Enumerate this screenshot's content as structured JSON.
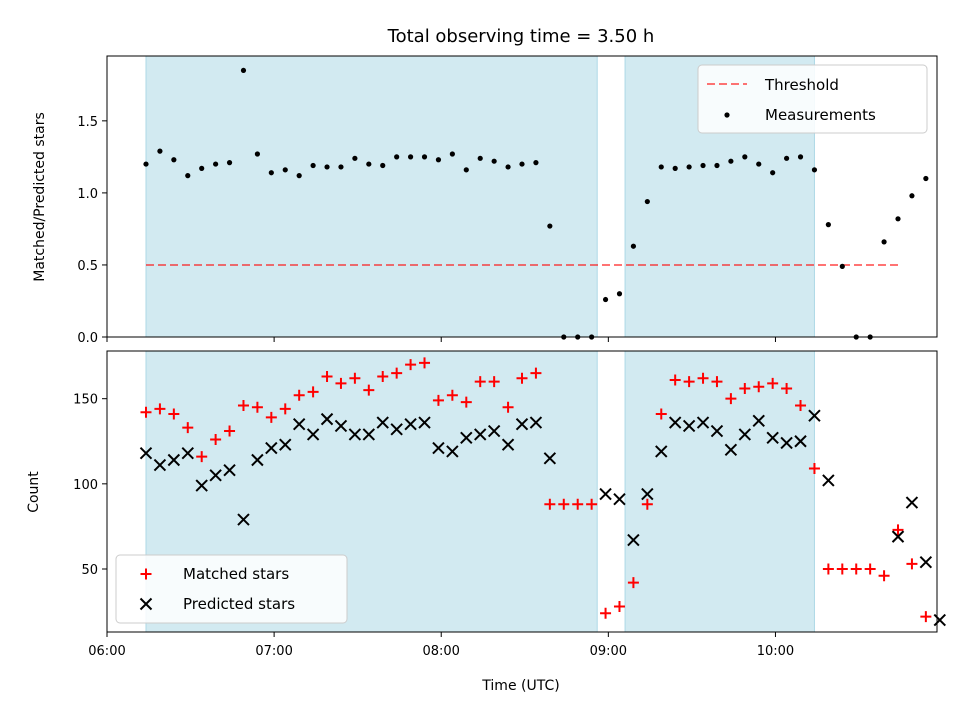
{
  "colors": {
    "shade": "#add8e6",
    "threshold": "#ff0000",
    "matched": "#ff0000",
    "predicted": "#000000",
    "measurements": "#000000"
  },
  "chart_data": [
    {
      "type": "scatter",
      "title": "Total observing time = 3.50 h",
      "ylabel": "Matched/Predicted stars",
      "xlabel": "",
      "x_axis": "time",
      "xlim": [
        "06:00",
        "10:58"
      ],
      "ylim": [
        0,
        1.95
      ],
      "y_ticks": [
        "0.0",
        "0.5",
        "1.0",
        "1.5"
      ],
      "legend_position": "upper right",
      "shaded_intervals": [
        [
          "06:14",
          "08:56"
        ],
        [
          "09:06",
          "10:14"
        ]
      ],
      "threshold": {
        "name": "Threshold",
        "value": 0.5,
        "x_range": [
          "06:14",
          "10:45"
        ],
        "style": "dashed"
      },
      "series": [
        {
          "name": "Measurements",
          "marker": "dot",
          "points": [
            [
              "06:14",
              1.2
            ],
            [
              "06:19",
              1.29
            ],
            [
              "06:24",
              1.23
            ],
            [
              "06:29",
              1.12
            ],
            [
              "06:34",
              1.17
            ],
            [
              "06:39",
              1.2
            ],
            [
              "06:44",
              1.21
            ],
            [
              "06:49",
              1.85
            ],
            [
              "06:54",
              1.27
            ],
            [
              "06:59",
              1.14
            ],
            [
              "07:04",
              1.16
            ],
            [
              "07:09",
              1.12
            ],
            [
              "07:14",
              1.19
            ],
            [
              "07:19",
              1.18
            ],
            [
              "07:24",
              1.18
            ],
            [
              "07:29",
              1.24
            ],
            [
              "07:34",
              1.2
            ],
            [
              "07:39",
              1.19
            ],
            [
              "07:44",
              1.25
            ],
            [
              "07:49",
              1.25
            ],
            [
              "07:54",
              1.25
            ],
            [
              "07:59",
              1.23
            ],
            [
              "08:04",
              1.27
            ],
            [
              "08:09",
              1.16
            ],
            [
              "08:14",
              1.24
            ],
            [
              "08:19",
              1.22
            ],
            [
              "08:24",
              1.18
            ],
            [
              "08:29",
              1.2
            ],
            [
              "08:34",
              1.21
            ],
            [
              "08:39",
              0.77
            ],
            [
              "08:44",
              0.0
            ],
            [
              "08:49",
              0.0
            ],
            [
              "08:54",
              0.0
            ],
            [
              "08:59",
              0.26
            ],
            [
              "09:04",
              0.3
            ],
            [
              "09:09",
              0.63
            ],
            [
              "09:14",
              0.94
            ],
            [
              "09:19",
              1.18
            ],
            [
              "09:24",
              1.17
            ],
            [
              "09:29",
              1.18
            ],
            [
              "09:34",
              1.19
            ],
            [
              "09:39",
              1.19
            ],
            [
              "09:44",
              1.22
            ],
            [
              "09:49",
              1.25
            ],
            [
              "09:54",
              1.2
            ],
            [
              "09:59",
              1.14
            ],
            [
              "10:04",
              1.24
            ],
            [
              "10:09",
              1.25
            ],
            [
              "10:14",
              1.16
            ],
            [
              "10:19",
              0.78
            ],
            [
              "10:24",
              0.49
            ],
            [
              "10:29",
              0.0
            ],
            [
              "10:34",
              0.0
            ],
            [
              "10:39",
              0.66
            ],
            [
              "10:44",
              0.82
            ],
            [
              "10:49",
              0.98
            ],
            [
              "10:54",
              1.1
            ]
          ]
        }
      ]
    },
    {
      "type": "scatter",
      "title": "",
      "ylabel": "Count",
      "xlabel": "Time (UTC)",
      "x_axis": "time",
      "xlim": [
        "06:00",
        "10:58"
      ],
      "ylim": [
        13,
        178
      ],
      "y_ticks": [
        "50",
        "100",
        "150"
      ],
      "x_ticks": [
        "06:00",
        "07:00",
        "08:00",
        "09:00",
        "10:00"
      ],
      "legend_position": "lower left",
      "shaded_intervals": [
        [
          "06:14",
          "08:56"
        ],
        [
          "09:06",
          "10:14"
        ]
      ],
      "series": [
        {
          "name": "Matched stars",
          "marker": "plus",
          "points": [
            [
              "06:14",
              142
            ],
            [
              "06:19",
              144
            ],
            [
              "06:24",
              141
            ],
            [
              "06:29",
              133
            ],
            [
              "06:34",
              116
            ],
            [
              "06:39",
              126
            ],
            [
              "06:44",
              131
            ],
            [
              "06:49",
              146
            ],
            [
              "06:54",
              145
            ],
            [
              "06:59",
              139
            ],
            [
              "07:04",
              144
            ],
            [
              "07:09",
              152
            ],
            [
              "07:14",
              154
            ],
            [
              "07:19",
              163
            ],
            [
              "07:24",
              159
            ],
            [
              "07:29",
              162
            ],
            [
              "07:34",
              155
            ],
            [
              "07:39",
              163
            ],
            [
              "07:44",
              165
            ],
            [
              "07:49",
              170
            ],
            [
              "07:54",
              171
            ],
            [
              "07:59",
              149
            ],
            [
              "08:04",
              152
            ],
            [
              "08:09",
              148
            ],
            [
              "08:14",
              160
            ],
            [
              "08:19",
              160
            ],
            [
              "08:24",
              145
            ],
            [
              "08:29",
              162
            ],
            [
              "08:34",
              165
            ],
            [
              "08:39",
              88
            ],
            [
              "08:44",
              88
            ],
            [
              "08:49",
              88
            ],
            [
              "08:54",
              88
            ],
            [
              "08:59",
              24
            ],
            [
              "09:04",
              28
            ],
            [
              "09:09",
              42
            ],
            [
              "09:14",
              88
            ],
            [
              "09:19",
              141
            ],
            [
              "09:24",
              161
            ],
            [
              "09:29",
              160
            ],
            [
              "09:34",
              162
            ],
            [
              "09:39",
              160
            ],
            [
              "09:44",
              150
            ],
            [
              "09:49",
              156
            ],
            [
              "09:54",
              157
            ],
            [
              "09:59",
              159
            ],
            [
              "10:04",
              156
            ],
            [
              "10:09",
              146
            ],
            [
              "10:14",
              109
            ],
            [
              "10:19",
              50
            ],
            [
              "10:24",
              50
            ],
            [
              "10:29",
              50
            ],
            [
              "10:34",
              50
            ],
            [
              "10:39",
              46
            ],
            [
              "10:44",
              73
            ],
            [
              "10:49",
              53
            ],
            [
              "10:54",
              22
            ]
          ]
        },
        {
          "name": "Predicted stars",
          "marker": "x",
          "points": [
            [
              "06:14",
              118
            ],
            [
              "06:19",
              111
            ],
            [
              "06:24",
              114
            ],
            [
              "06:29",
              118
            ],
            [
              "06:34",
              99
            ],
            [
              "06:39",
              105
            ],
            [
              "06:44",
              108
            ],
            [
              "06:49",
              79
            ],
            [
              "06:54",
              114
            ],
            [
              "06:59",
              121
            ],
            [
              "07:04",
              123
            ],
            [
              "07:09",
              135
            ],
            [
              "07:14",
              129
            ],
            [
              "07:19",
              138
            ],
            [
              "07:24",
              134
            ],
            [
              "07:29",
              129
            ],
            [
              "07:34",
              129
            ],
            [
              "07:39",
              136
            ],
            [
              "07:44",
              132
            ],
            [
              "07:49",
              135
            ],
            [
              "07:54",
              136
            ],
            [
              "07:59",
              121
            ],
            [
              "08:04",
              119
            ],
            [
              "08:09",
              127
            ],
            [
              "08:14",
              129
            ],
            [
              "08:19",
              131
            ],
            [
              "08:24",
              123
            ],
            [
              "08:29",
              135
            ],
            [
              "08:34",
              136
            ],
            [
              "08:39",
              115
            ],
            [
              "08:59",
              94
            ],
            [
              "09:04",
              91
            ],
            [
              "09:09",
              67
            ],
            [
              "09:14",
              94
            ],
            [
              "09:19",
              119
            ],
            [
              "09:24",
              136
            ],
            [
              "09:29",
              134
            ],
            [
              "09:34",
              136
            ],
            [
              "09:39",
              131
            ],
            [
              "09:44",
              120
            ],
            [
              "09:49",
              129
            ],
            [
              "09:54",
              137
            ],
            [
              "09:59",
              127
            ],
            [
              "10:04",
              124
            ],
            [
              "10:09",
              125
            ],
            [
              "10:14",
              140
            ],
            [
              "10:19",
              102
            ],
            [
              "10:44",
              69
            ],
            [
              "10:49",
              89
            ],
            [
              "10:54",
              54
            ],
            [
              "10:59",
              20
            ]
          ]
        }
      ]
    }
  ]
}
